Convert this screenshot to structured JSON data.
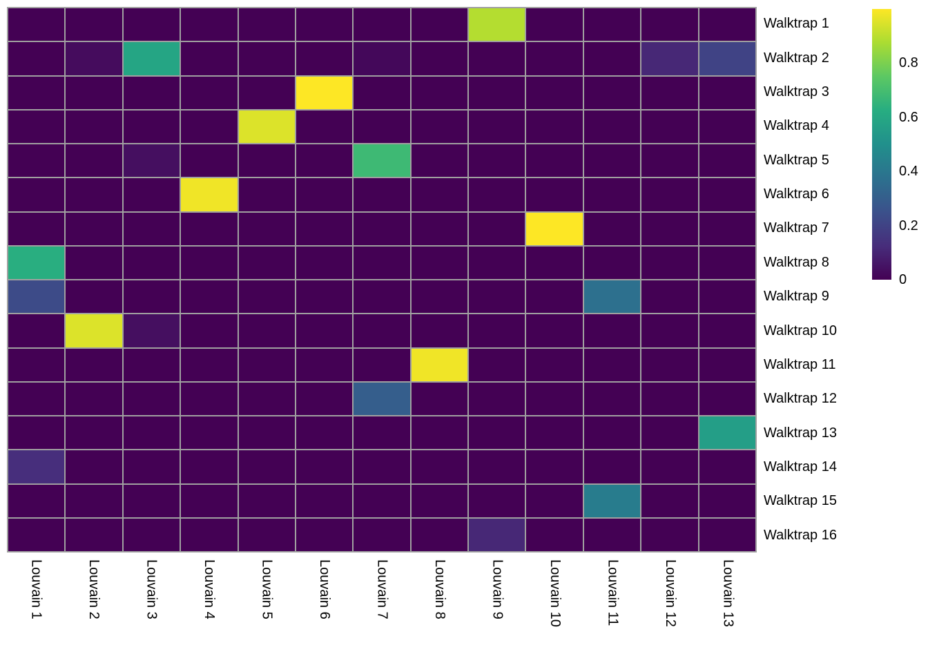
{
  "chart_data": {
    "type": "heatmap",
    "title": "",
    "xlabel": "",
    "ylabel": "",
    "rows": [
      "Walktrap 1",
      "Walktrap 2",
      "Walktrap 3",
      "Walktrap 4",
      "Walktrap 5",
      "Walktrap 6",
      "Walktrap 7",
      "Walktrap 8",
      "Walktrap 9",
      "Walktrap 10",
      "Walktrap 11",
      "Walktrap 12",
      "Walktrap 13",
      "Walktrap 14",
      "Walktrap 15",
      "Walktrap 16"
    ],
    "columns": [
      "Louvain 1",
      "Louvain 2",
      "Louvain 3",
      "Louvain 4",
      "Louvain 5",
      "Louvain 6",
      "Louvain 7",
      "Louvain 8",
      "Louvain 9",
      "Louvain 10",
      "Louvain 11",
      "Louvain 12",
      "Louvain 13"
    ],
    "matrix": [
      [
        0,
        0,
        0,
        0,
        0,
        0,
        0,
        0,
        0.89,
        0,
        0,
        0,
        0
      ],
      [
        0,
        0.03,
        0.59,
        0,
        0,
        0,
        0.02,
        0,
        0,
        0,
        0,
        0.11,
        0.2
      ],
      [
        0,
        0,
        0,
        0,
        0,
        1.0,
        0,
        0,
        0,
        0,
        0,
        0,
        0
      ],
      [
        0,
        0,
        0,
        0,
        0.95,
        0,
        0,
        0,
        0,
        0,
        0,
        0,
        0
      ],
      [
        0,
        0,
        0.04,
        0,
        0,
        0,
        0.68,
        0,
        0,
        0,
        0,
        0,
        0
      ],
      [
        0,
        0,
        0,
        0.98,
        0,
        0,
        0,
        0,
        0,
        0,
        0,
        0,
        0
      ],
      [
        0,
        0,
        0,
        0,
        0,
        0,
        0,
        0,
        0,
        1.0,
        0,
        0,
        0
      ],
      [
        0.63,
        0,
        0,
        0,
        0,
        0,
        0,
        0,
        0,
        0,
        0,
        0,
        0
      ],
      [
        0.23,
        0,
        0,
        0,
        0,
        0,
        0,
        0,
        0,
        0,
        0.37,
        0,
        0
      ],
      [
        0,
        0.95,
        0.04,
        0,
        0,
        0,
        0,
        0,
        0,
        0,
        0,
        0,
        0
      ],
      [
        0,
        0,
        0,
        0,
        0,
        0,
        0,
        0.98,
        0,
        0,
        0,
        0,
        0
      ],
      [
        0,
        0,
        0,
        0,
        0,
        0,
        0.3,
        0,
        0,
        0,
        0,
        0,
        0
      ],
      [
        0,
        0,
        0,
        0,
        0,
        0,
        0,
        0,
        0,
        0,
        0,
        0,
        0.56
      ],
      [
        0.13,
        0,
        0,
        0,
        0,
        0,
        0,
        0,
        0,
        0,
        0,
        0,
        0
      ],
      [
        0,
        0,
        0,
        0,
        0,
        0,
        0,
        0,
        0,
        0,
        0.42,
        0,
        0
      ],
      [
        0,
        0,
        0,
        0,
        0,
        0,
        0,
        0,
        0.11,
        0,
        0,
        0,
        0
      ]
    ],
    "legend": {
      "ticks": [
        {
          "label": "0.8",
          "value": 0.8
        },
        {
          "label": "0.6",
          "value": 0.6
        },
        {
          "label": "0.4",
          "value": 0.4
        },
        {
          "label": "0.2",
          "value": 0.2
        },
        {
          "label": "0",
          "value": 0
        }
      ],
      "range": [
        0,
        1
      ],
      "position": "right"
    },
    "colormap": "viridis",
    "viridis_anchors": [
      "#440154",
      "#472d7b",
      "#3b518b",
      "#2c718e",
      "#21908c",
      "#27ad81",
      "#5cc863",
      "#aadc32",
      "#fde725"
    ]
  },
  "colors": {
    "background": "#ffffff",
    "grid_line": "#a0a0a0",
    "label_text": "#000000"
  }
}
